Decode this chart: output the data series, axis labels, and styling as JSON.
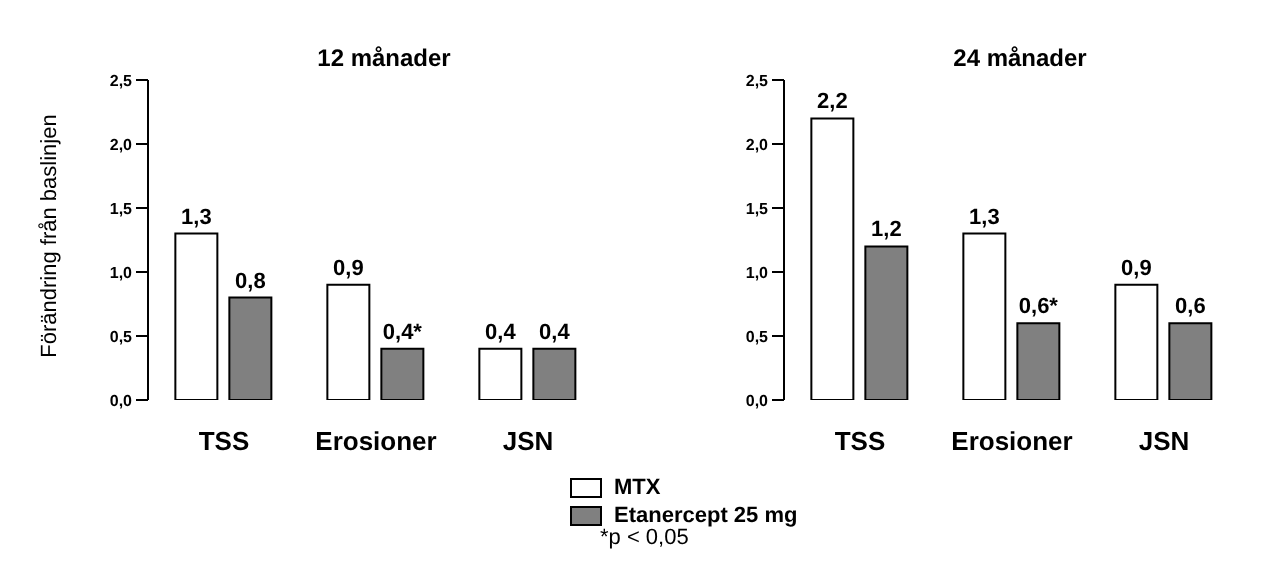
{
  "chart_data": [
    {
      "type": "bar",
      "title": "12 månader",
      "ylabel": "Förändring från baslinjen",
      "categories": [
        "TSS",
        "Erosioner",
        "JSN"
      ],
      "ylim": [
        0,
        2.5
      ],
      "yticks": [
        {
          "value": 0,
          "label": "0,0"
        },
        {
          "value": 0.5,
          "label": "0,5"
        },
        {
          "value": 1,
          "label": "1,0"
        },
        {
          "value": 1.5,
          "label": "1,5"
        },
        {
          "value": 2,
          "label": "2,0"
        },
        {
          "value": 2.5,
          "label": "2,5"
        }
      ],
      "series": [
        {
          "color": "#ffffff",
          "values": [
            1.3,
            0.9,
            0.4
          ],
          "value_labels": [
            "1,3",
            "0,9",
            "0,4"
          ]
        },
        {
          "color": "#808080",
          "values": [
            0.8,
            0.4,
            0.4
          ],
          "value_labels": [
            "0,8",
            "0,4*",
            "0,4"
          ]
        }
      ],
      "grid": false,
      "legend": false
    },
    {
      "type": "bar",
      "title": "24 månader",
      "categories": [
        "TSS",
        "Erosioner",
        "JSN"
      ],
      "ylim": [
        0,
        2.5
      ],
      "yticks": [
        {
          "value": 0,
          "label": "0,0"
        },
        {
          "value": 0.5,
          "label": "0,5"
        },
        {
          "value": 1,
          "label": "1,0"
        },
        {
          "value": 1.5,
          "label": "1,5"
        },
        {
          "value": 2,
          "label": "2,0"
        },
        {
          "value": 2.5,
          "label": "2,5"
        }
      ],
      "series": [
        {
          "name": "MTX",
          "color": "#ffffff",
          "values": [
            2.2,
            1.3,
            0.9
          ],
          "value_labels": [
            "2,2",
            "1,3",
            "0,9"
          ]
        },
        {
          "name": "Etanercept 25 mg",
          "color": "#808080",
          "values": [
            1.2,
            0.6,
            0.6
          ],
          "value_labels": [
            "1,2",
            "0,6*",
            "0,6"
          ]
        }
      ],
      "grid": false,
      "legend": "bottom left",
      "annotations": [
        "*p < 0,05"
      ]
    }
  ]
}
